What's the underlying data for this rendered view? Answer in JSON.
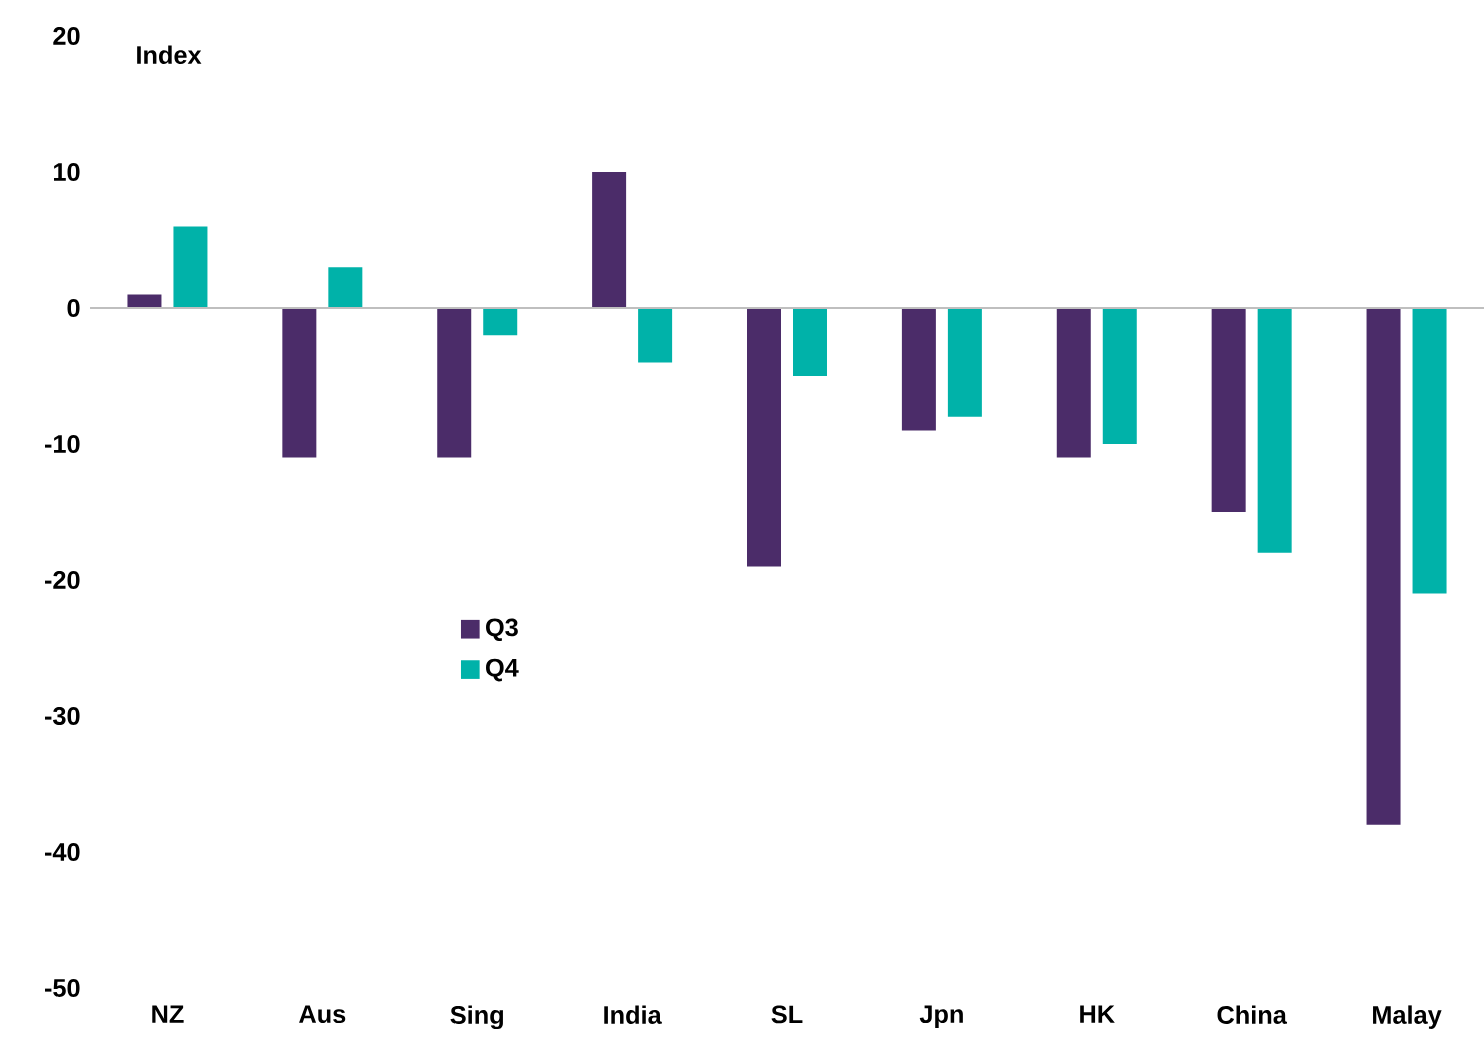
{
  "chart_data": {
    "type": "bar",
    "ylabel": "Index",
    "categories": [
      "NZ",
      "Aus",
      "Sing",
      "India",
      "SL",
      "Jpn",
      "HK",
      "China",
      "Malay"
    ],
    "series": [
      {
        "name": "Q3",
        "color": "#4b2c69",
        "values": [
          1,
          -11,
          -11,
          10,
          -19,
          -9,
          -11,
          -15,
          -38
        ]
      },
      {
        "name": "Q4",
        "color": "#00b2a9",
        "values": [
          6,
          3,
          -2,
          -4,
          -5,
          -8,
          -10,
          -18,
          -21
        ]
      }
    ],
    "ylim": [
      -50,
      20
    ],
    "yticks": [
      -50,
      -40,
      -30,
      -20,
      -10,
      0,
      10,
      20
    ],
    "legend": "left"
  }
}
